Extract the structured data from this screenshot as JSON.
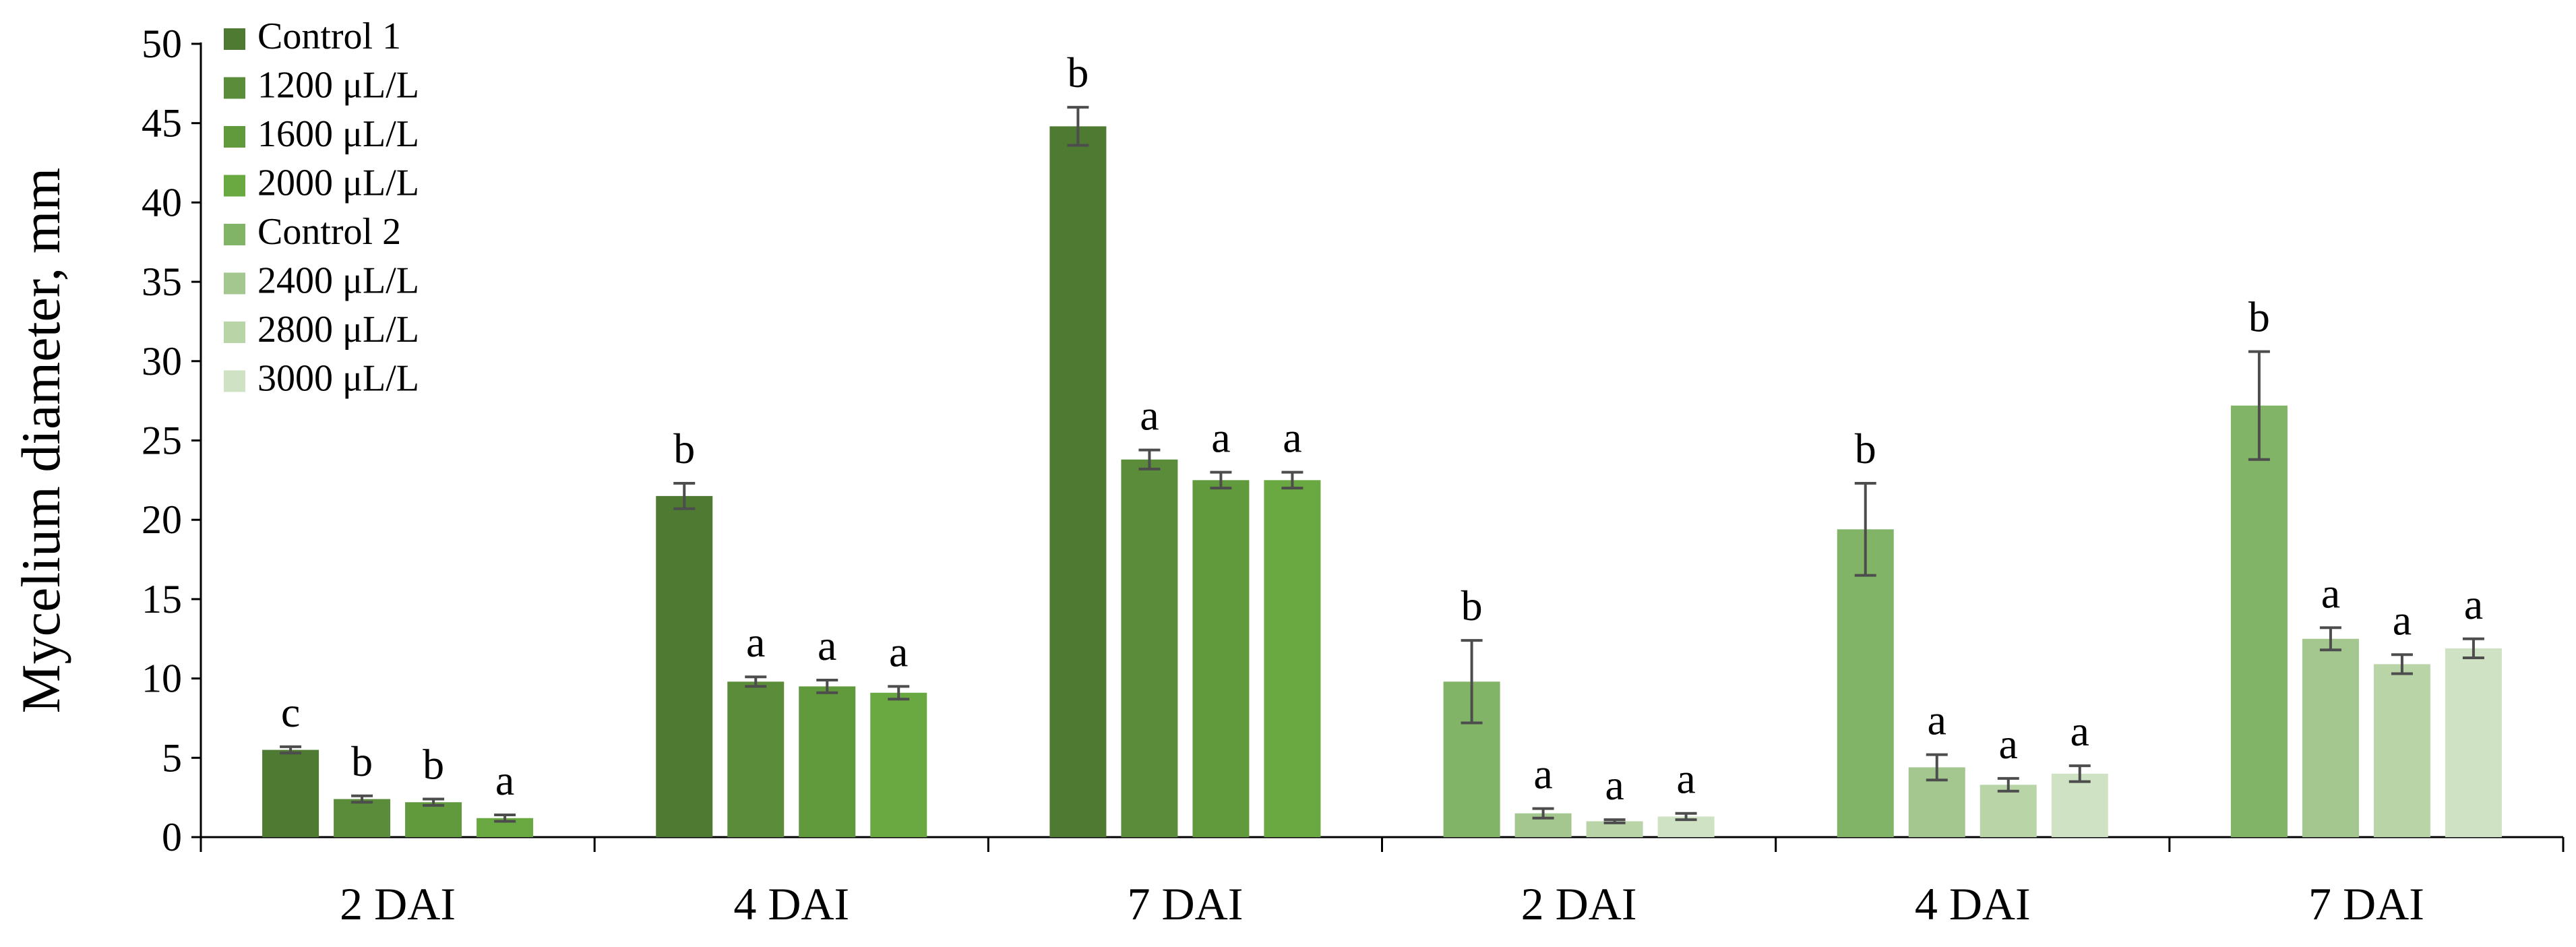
{
  "chart_data": {
    "type": "bar",
    "title": "",
    "xlabel": "",
    "ylabel": "Mycelium diameter, mm",
    "ylim": [
      0,
      50
    ],
    "yticks": [
      0,
      5,
      10,
      15,
      20,
      25,
      30,
      35,
      40,
      45,
      50
    ],
    "grid": false,
    "legend_position": "top-left",
    "groups": [
      {
        "label": "2 DAI",
        "bars": [
          {
            "series": "Control 1",
            "value": 5.5,
            "error": 0.2,
            "letter": "c"
          },
          {
            "series": "1200 μL/L",
            "value": 2.4,
            "error": 0.2,
            "letter": "b"
          },
          {
            "series": "1600 μL/L",
            "value": 2.2,
            "error": 0.2,
            "letter": "b"
          },
          {
            "series": "2000 μL/L",
            "value": 1.2,
            "error": 0.2,
            "letter": "a"
          }
        ]
      },
      {
        "label": "4 DAI",
        "bars": [
          {
            "series": "Control 1",
            "value": 21.5,
            "error": 0.8,
            "letter": "b"
          },
          {
            "series": "1200 μL/L",
            "value": 9.8,
            "error": 0.3,
            "letter": "a"
          },
          {
            "series": "1600 μL/L",
            "value": 9.5,
            "error": 0.4,
            "letter": "a"
          },
          {
            "series": "2000 μL/L",
            "value": 9.1,
            "error": 0.4,
            "letter": "a"
          }
        ]
      },
      {
        "label": "7 DAI",
        "bars": [
          {
            "series": "Control 1",
            "value": 44.8,
            "error": 1.2,
            "letter": "b"
          },
          {
            "series": "1200 μL/L",
            "value": 23.8,
            "error": 0.6,
            "letter": "a"
          },
          {
            "series": "1600 μL/L",
            "value": 22.5,
            "error": 0.5,
            "letter": "a"
          },
          {
            "series": "2000 μL/L",
            "value": 22.5,
            "error": 0.5,
            "letter": "a"
          }
        ]
      },
      {
        "label": "2 DAI",
        "bars": [
          {
            "series": "Control 2",
            "value": 9.8,
            "error": 2.6,
            "letter": "b"
          },
          {
            "series": "2400 μL/L",
            "value": 1.5,
            "error": 0.3,
            "letter": "a"
          },
          {
            "series": "2800 μL/L",
            "value": 1.0,
            "error": 0.1,
            "letter": "a"
          },
          {
            "series": "3000 μL/L",
            "value": 1.3,
            "error": 0.2,
            "letter": "a"
          }
        ]
      },
      {
        "label": "4 DAI",
        "bars": [
          {
            "series": "Control 2",
            "value": 19.4,
            "error": 2.9,
            "letter": "b"
          },
          {
            "series": "2400 μL/L",
            "value": 4.4,
            "error": 0.8,
            "letter": "a"
          },
          {
            "series": "2800 μL/L",
            "value": 3.3,
            "error": 0.4,
            "letter": "a"
          },
          {
            "series": "3000 μL/L",
            "value": 4.0,
            "error": 0.5,
            "letter": "a"
          }
        ]
      },
      {
        "label": "7 DAI",
        "bars": [
          {
            "series": "Control 2",
            "value": 27.2,
            "error": 3.4,
            "letter": "b"
          },
          {
            "series": "2400 μL/L",
            "value": 12.5,
            "error": 0.7,
            "letter": "a"
          },
          {
            "series": "2800 μL/L",
            "value": 10.9,
            "error": 0.6,
            "letter": "a"
          },
          {
            "series": "3000 μL/L",
            "value": 11.9,
            "error": 0.6,
            "letter": "a"
          }
        ]
      }
    ],
    "series": [
      {
        "name": "Control 1",
        "color": "#4e7a31"
      },
      {
        "name": "1200 μL/L",
        "color": "#5a8c3a"
      },
      {
        "name": "1600 μL/L",
        "color": "#619a3d"
      },
      {
        "name": "2000 μL/L",
        "color": "#6aa842"
      },
      {
        "name": "Control 2",
        "color": "#82b467"
      },
      {
        "name": "2400 μL/L",
        "color": "#a3c78e"
      },
      {
        "name": "2800 μL/L",
        "color": "#b9d5a8"
      },
      {
        "name": "3000 μL/L",
        "color": "#cfe2c3"
      }
    ],
    "error_bar_color": "#4d4d4d",
    "axis_color": "#000000"
  }
}
